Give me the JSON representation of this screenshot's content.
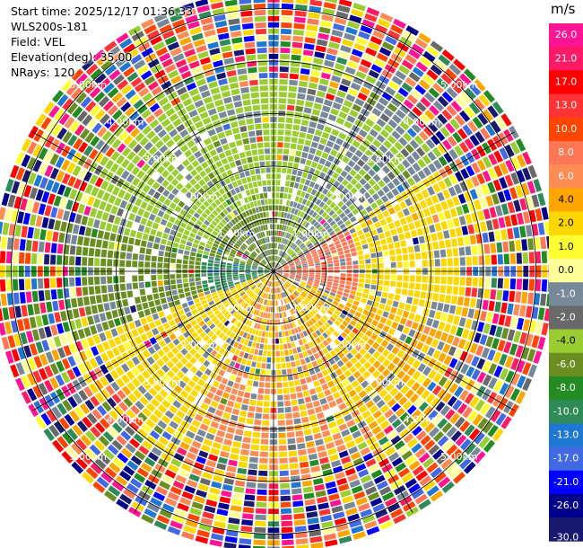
{
  "info": {
    "start_time": "Start time: 2025/12/17 01:36:33",
    "instrument": "WLS200s-181",
    "field": "Field: VEL",
    "elevation": "Elevation(deg): 35.00",
    "nrays": "NRays: 120"
  },
  "colorbar": {
    "unit": "m/s",
    "ticks": [
      "26.0",
      "21.0",
      "17.0",
      "13.0",
      "10.0",
      "8.0",
      "6.0",
      "4.0",
      "2.0",
      "1.0",
      "0.0",
      "-1.0",
      "-2.0",
      "-4.0",
      "-6.0",
      "-8.0",
      "-10.0",
      "-13.0",
      "-17.0",
      "-21.0",
      "-26.0",
      "-30.0"
    ],
    "colors": [
      "#ff1493",
      "#ff1a66",
      "#ff0000",
      "#ff3333",
      "#ff4500",
      "#ff7755",
      "#ff8c55",
      "#ffa500",
      "#ffd700",
      "#ffff33",
      "#ffff99",
      "#778899",
      "#696969",
      "#9acd32",
      "#6b8e23",
      "#228b22",
      "#2e8b57",
      "#1e78d2",
      "#4169e1",
      "#0000ff",
      "#00008b",
      "#191970"
    ]
  },
  "chart_data": {
    "type": "heatmap",
    "subtype": "polar PPI scan",
    "field": "VEL",
    "unit": "m/s",
    "nrays": 120,
    "range_rings_km": [
      1.0,
      2.0,
      3.0,
      4.0,
      5.0
    ],
    "range_ring_labels": [
      "1.00km",
      "2.00km",
      "3.00km",
      "4.00km",
      "5.00km"
    ],
    "max_range_km": 5.3,
    "value_range": [
      -30,
      26
    ],
    "pattern": [
      {
        "sector": "north-west quadrant near range",
        "typical_velocity_ms": -2.0
      },
      {
        "sector": "west near range",
        "typical_velocity_ms": -8.0
      },
      {
        "sector": "north-east near range",
        "typical_velocity_ms": -1.0
      },
      {
        "sector": "east and south-east",
        "typical_velocity_ms": 4.0
      },
      {
        "sector": "south",
        "typical_velocity_ms": 6.0
      },
      {
        "sector": "outer ranges beyond 4 km",
        "typical_velocity_ms": "noisy, all values"
      }
    ]
  }
}
